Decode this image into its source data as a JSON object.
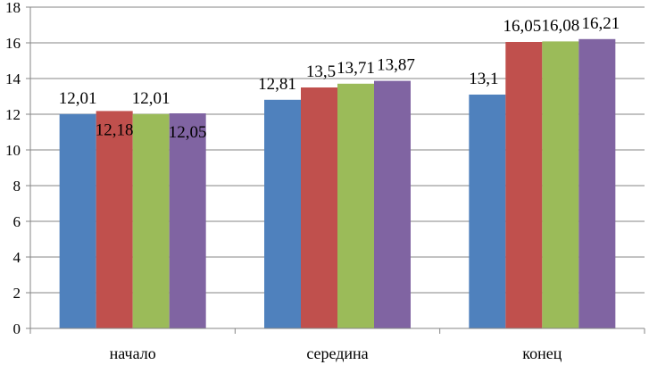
{
  "chart_data": {
    "type": "bar",
    "title": "",
    "xlabel": "",
    "ylabel": "",
    "categories": [
      "начало",
      "середина",
      "конец"
    ],
    "series": [
      {
        "color": "#4F81BD",
        "values": [
          12.01,
          12.81,
          13.1
        ],
        "labels": [
          "12,01",
          "12,81",
          "13,1"
        ]
      },
      {
        "color": "#C0504D",
        "values": [
          12.18,
          13.5,
          16.05
        ],
        "labels": [
          "12,18",
          "13,5",
          "16,05"
        ]
      },
      {
        "color": "#9BBB59",
        "values": [
          12.01,
          13.71,
          16.08
        ],
        "labels": [
          "12,01",
          "13,71",
          "16,08"
        ]
      },
      {
        "color": "#8064A2",
        "values": [
          12.05,
          13.87,
          16.21
        ],
        "labels": [
          "12,05",
          "13,87",
          "16,21"
        ]
      }
    ],
    "ylim": [
      0,
      18
    ],
    "yticks": [
      0,
      2,
      4,
      6,
      8,
      10,
      12,
      14,
      16,
      18
    ],
    "ytick_labels": [
      "0",
      "2",
      "4",
      "6",
      "8",
      "10",
      "12",
      "14",
      "16",
      "18"
    ],
    "grid": true,
    "legend": "none"
  }
}
